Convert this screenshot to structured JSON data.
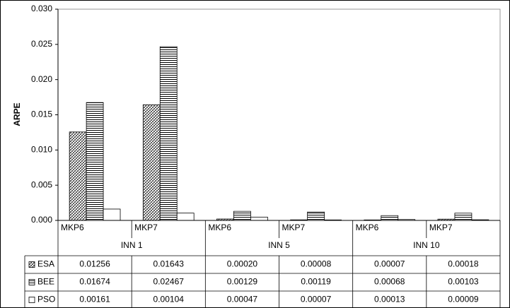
{
  "chart_data": {
    "type": "bar",
    "y_label": "ARPE",
    "categories": [
      "MKP6",
      "MKP7",
      "MKP6",
      "MKP7",
      "MKP6",
      "MKP7"
    ],
    "groups": [
      "INN 1",
      "INN 5",
      "INN 10"
    ],
    "series": [
      {
        "name": "ESA",
        "pattern": "diagonal-cross",
        "color": "#000000",
        "values": [
          0.01256,
          0.01643,
          0.0002,
          8e-05,
          7e-05,
          0.00018
        ],
        "value_labels": [
          "0.01256",
          "0.01643",
          "0.00020",
          "0.00008",
          "0.00007",
          "0.00018"
        ]
      },
      {
        "name": "BEE",
        "pattern": "horizontal",
        "color": "#000000",
        "values": [
          0.01674,
          0.02467,
          0.00129,
          0.00119,
          0.00068,
          0.00103
        ],
        "value_labels": [
          "0.01674",
          "0.02467",
          "0.00129",
          "0.00119",
          "0.00068",
          "0.00103"
        ]
      },
      {
        "name": "PSO",
        "pattern": "none",
        "color": "#000000",
        "values": [
          0.00161,
          0.00104,
          0.00047,
          7e-05,
          0.00013,
          9e-05
        ],
        "value_labels": [
          "0.00161",
          "0.00104",
          "0.00047",
          "0.00007",
          "0.00013",
          "0.00009"
        ]
      }
    ],
    "ylim": [
      0,
      0.03
    ],
    "yticks": [
      {
        "value": 0,
        "label": "0.000"
      },
      {
        "value": 0.005,
        "label": "0.005"
      },
      {
        "value": 0.01,
        "label": "0.010"
      },
      {
        "value": 0.015,
        "label": "0.015"
      },
      {
        "value": 0.02,
        "label": "0.020"
      },
      {
        "value": 0.025,
        "label": "0.025"
      },
      {
        "value": 0.03,
        "label": "0.030"
      }
    ],
    "grid": false,
    "data_table": true
  }
}
